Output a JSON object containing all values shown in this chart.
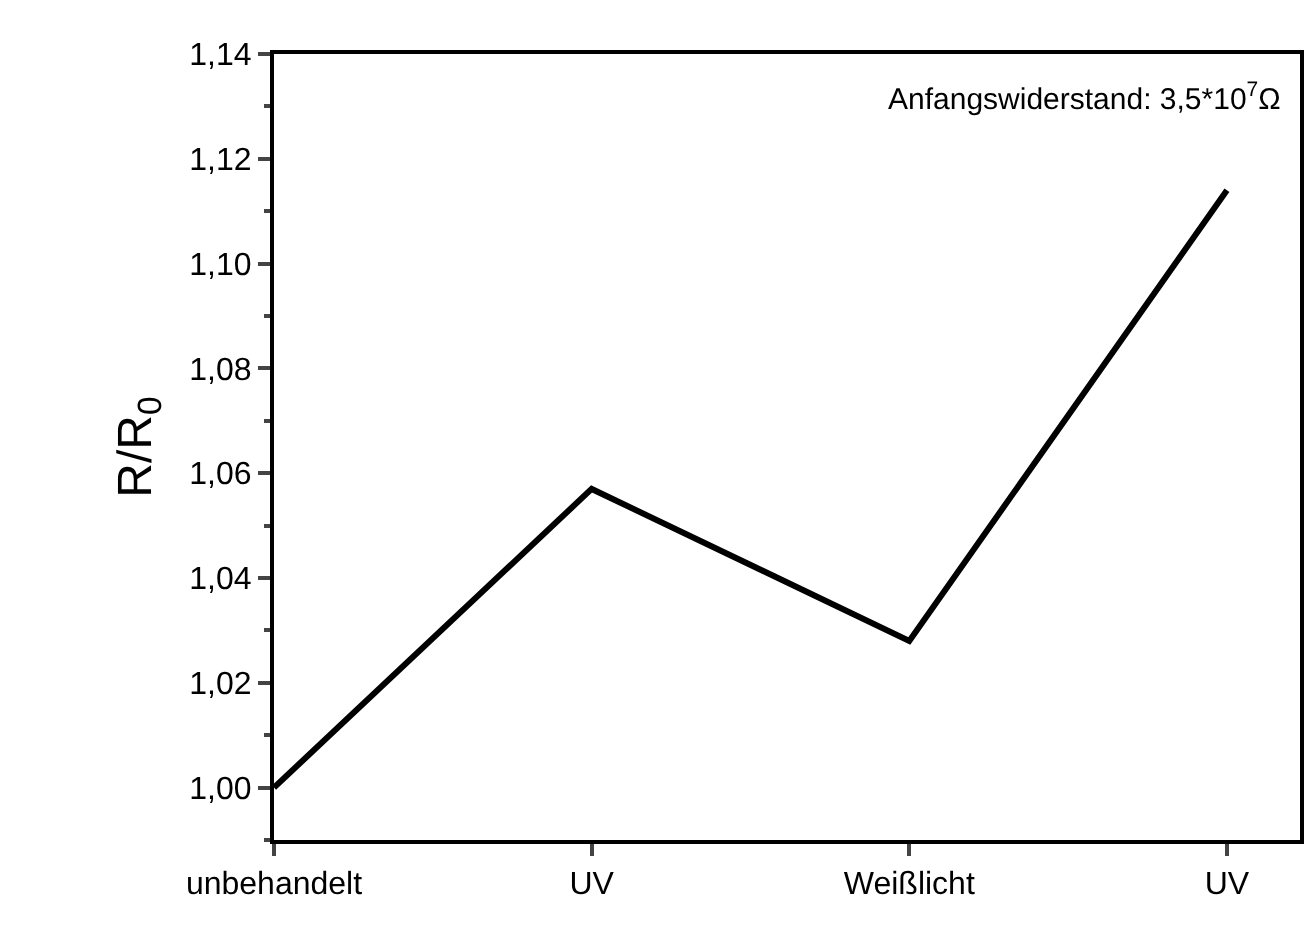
{
  "chart_data": {
    "type": "line",
    "ylabel": "R/R$_{0}$",
    "categories": [
      "unbehandelt",
      "UV",
      "Weißlicht",
      "UV"
    ],
    "series": [
      {
        "color": "#000000",
        "values": [
          1.0,
          1.057,
          1.028,
          1.114
        ]
      }
    ],
    "ylim": [
      0.99,
      1.14
    ],
    "yticks": [
      {
        "value": 1.0,
        "label": "1,00"
      },
      {
        "value": 1.02,
        "label": "1,02"
      },
      {
        "value": 1.04,
        "label": "1,04"
      },
      {
        "value": 1.06,
        "label": "1,06"
      },
      {
        "value": 1.08,
        "label": "1,08"
      },
      {
        "value": 1.1,
        "label": "1,10"
      },
      {
        "value": 1.12,
        "label": "1,12"
      },
      {
        "value": 1.14,
        "label": "1,14"
      }
    ],
    "annotations": [
      "Anfangswiderstand: 3,5*10$^{7}$Ω"
    ],
    "legend": false,
    "marker": "none",
    "line_style": "solid"
  }
}
